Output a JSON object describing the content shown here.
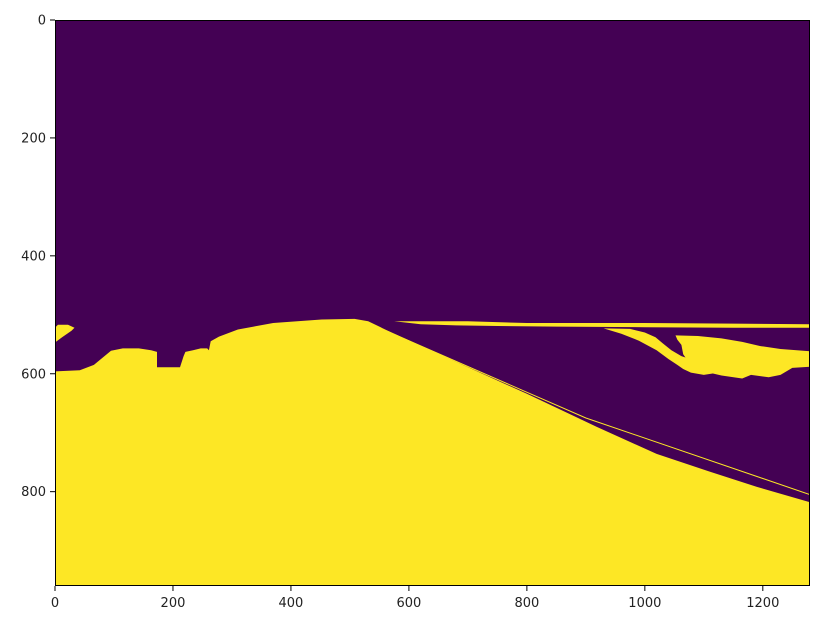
{
  "chart_data": {
    "type": "heatmap",
    "title": "",
    "xlabel": "",
    "ylabel": "",
    "xlim": [
      0,
      1280
    ],
    "ylim": [
      960,
      0
    ],
    "y_inverted": true,
    "grid": false,
    "legend": "none",
    "colormap": "viridis",
    "classes": [
      {
        "value": 0,
        "color": "#440154"
      },
      {
        "value": 1,
        "color": "#fde725"
      }
    ],
    "x_ticks": [
      0,
      200,
      400,
      600,
      800,
      1000,
      1200
    ],
    "y_ticks": [
      0,
      200,
      400,
      600,
      800
    ],
    "regions": [
      {
        "value": 1,
        "polygon": [
          [
            0,
            960
          ],
          [
            0,
            596
          ],
          [
            42,
            594
          ],
          [
            66,
            585
          ],
          [
            78,
            575
          ],
          [
            95,
            561
          ],
          [
            115,
            557
          ],
          [
            142,
            557
          ],
          [
            163,
            560
          ],
          [
            173,
            563
          ],
          [
            173,
            589
          ],
          [
            212,
            589
          ],
          [
            218,
            570
          ],
          [
            221,
            563
          ],
          [
            234,
            560
          ],
          [
            247,
            557
          ],
          [
            258,
            557
          ],
          [
            261,
            560
          ],
          [
            264,
            545
          ],
          [
            278,
            537
          ],
          [
            310,
            525
          ],
          [
            370,
            514
          ],
          [
            452,
            508
          ],
          [
            508,
            507
          ],
          [
            531,
            511
          ],
          [
            562,
            526
          ],
          [
            676,
            578
          ],
          [
            800,
            634
          ],
          [
            918,
            690
          ],
          [
            1020,
            736
          ],
          [
            1110,
            766
          ],
          [
            1190,
            792
          ],
          [
            1280,
            818
          ],
          [
            1280,
            960
          ]
        ]
      },
      {
        "value": 1,
        "polygon": [
          [
            0,
            547
          ],
          [
            12,
            538
          ],
          [
            28,
            527
          ],
          [
            33,
            522
          ],
          [
            22,
            517
          ],
          [
            5,
            517
          ],
          [
            0,
            522
          ]
        ]
      },
      {
        "value": 1,
        "polygon": [
          [
            575,
            511
          ],
          [
            700,
            511
          ],
          [
            800,
            514
          ],
          [
            1000,
            514
          ],
          [
            1150,
            515
          ],
          [
            1280,
            516
          ],
          [
            1280,
            522
          ],
          [
            1150,
            522
          ],
          [
            1000,
            521
          ],
          [
            850,
            520
          ],
          [
            750,
            519
          ],
          [
            680,
            518
          ],
          [
            620,
            516
          ]
        ]
      },
      {
        "value": 1,
        "polygon": [
          [
            930,
            523
          ],
          [
            960,
            532
          ],
          [
            990,
            544
          ],
          [
            1020,
            560
          ],
          [
            1040,
            575
          ],
          [
            1055,
            585
          ],
          [
            1065,
            592
          ],
          [
            1078,
            598
          ],
          [
            1100,
            602
          ],
          [
            1118,
            599
          ],
          [
            1125,
            590
          ],
          [
            1108,
            584
          ],
          [
            1085,
            578
          ],
          [
            1062,
            570
          ],
          [
            1045,
            560
          ],
          [
            1030,
            548
          ],
          [
            1018,
            538
          ],
          [
            1000,
            530
          ],
          [
            975,
            524
          ]
        ]
      },
      {
        "value": 1,
        "polygon": [
          [
            1052,
            535
          ],
          [
            1090,
            536
          ],
          [
            1130,
            540
          ],
          [
            1165,
            546
          ],
          [
            1195,
            553
          ],
          [
            1230,
            558
          ],
          [
            1280,
            562
          ],
          [
            1280,
            588
          ],
          [
            1250,
            590
          ],
          [
            1230,
            602
          ],
          [
            1210,
            606
          ],
          [
            1180,
            602
          ],
          [
            1165,
            608
          ],
          [
            1130,
            603
          ],
          [
            1100,
            596
          ],
          [
            1078,
            586
          ],
          [
            1065,
            567
          ],
          [
            1062,
            551
          ],
          [
            1055,
            542
          ]
        ]
      }
    ],
    "lines": [
      {
        "value": 1,
        "points": [
          [
            545,
            520
          ],
          [
            900,
            675
          ],
          [
            1280,
            805
          ]
        ]
      }
    ],
    "specks": [
      {
        "value": 1,
        "x": 226,
        "y": 896
      }
    ]
  }
}
